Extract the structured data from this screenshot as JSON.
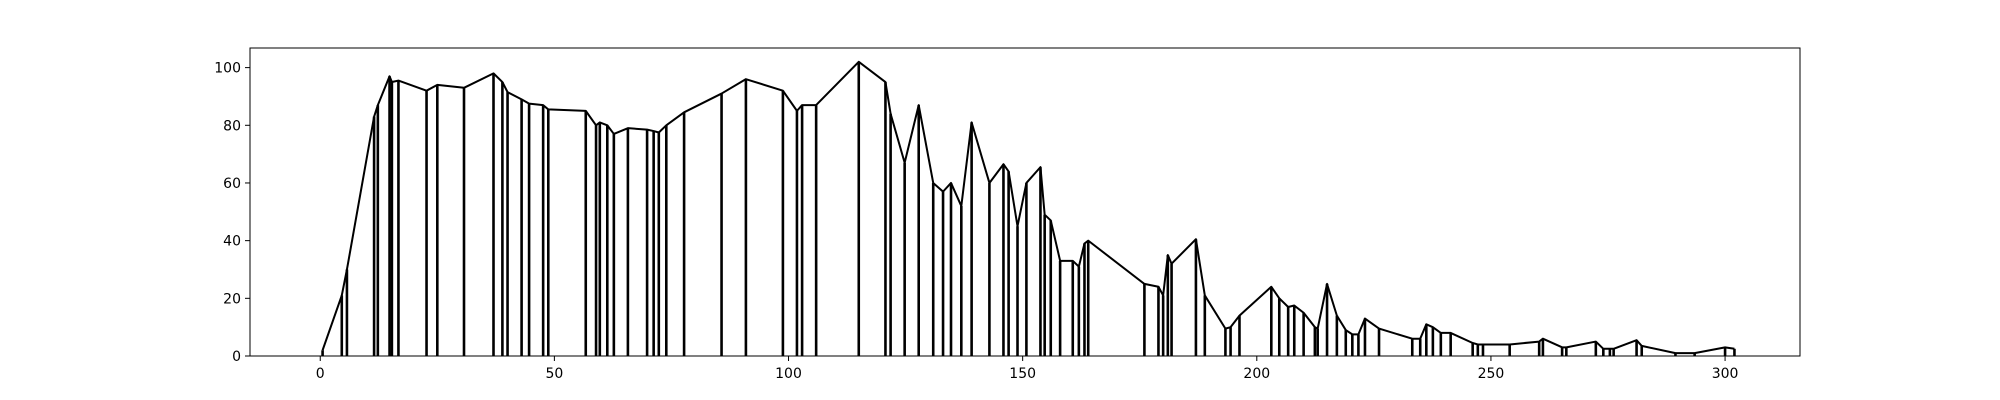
{
  "chart_data": {
    "type": "line",
    "stems": true,
    "color": "#000000",
    "x": [
      0.5,
      4.6,
      5.7,
      11.5,
      12.3,
      14.8,
      15.3,
      16.7,
      22.7,
      25,
      30.7,
      37,
      38.9,
      40,
      43,
      44.6,
      47.6,
      48.7,
      56.7,
      58.9,
      59.7,
      61.3,
      62.7,
      65.7,
      69.8,
      71.2,
      72.3,
      73.9,
      77.7,
      85.7,
      90.9,
      98.8,
      101.8,
      102.9,
      105.9,
      115,
      120.7,
      121.8,
      124.8,
      127.8,
      130.9,
      133,
      134.7,
      136.9,
      139.1,
      142.9,
      145.9,
      147,
      148.9,
      150.8,
      153.8,
      154.7,
      156,
      158,
      160.7,
      162,
      163.2,
      164,
      176,
      179,
      180,
      181,
      181.8,
      187,
      188.9,
      193.3,
      194.4,
      196.3,
      203.1,
      204.8,
      206.7,
      208,
      210,
      212.4,
      213,
      215,
      217.1,
      219,
      220.4,
      221.7,
      223.1,
      226.1,
      233.2,
      234.9,
      236.2,
      237.6,
      239.3,
      241.4,
      246.1,
      247.2,
      248.3,
      254,
      260.3,
      261.1,
      265.2,
      266.1,
      272.4,
      274,
      275.4,
      276.2,
      281.1,
      282.2,
      289.4,
      293.5,
      300,
      302
    ],
    "values": [
      2,
      21,
      30,
      83,
      87,
      97,
      95,
      95.5,
      92,
      94,
      93,
      98,
      95,
      91.5,
      89,
      87.5,
      87,
      85.5,
      85,
      80,
      81,
      80,
      77,
      79,
      78.5,
      78,
      77.5,
      80,
      84.5,
      91,
      96,
      92,
      85,
      87,
      87,
      102,
      95,
      84,
      67,
      87,
      60,
      57,
      60,
      52,
      81,
      60,
      66.5,
      64,
      45,
      60,
      65.5,
      49,
      47,
      33,
      33,
      31,
      39,
      40,
      25,
      24,
      21,
      35,
      32,
      40.5,
      21,
      9.5,
      10,
      14,
      24,
      20,
      17,
      17.5,
      15,
      10,
      9.5,
      25,
      14,
      9,
      7.5,
      7.5,
      13,
      9.5,
      6,
      6,
      11,
      10,
      8,
      8,
      4.5,
      4,
      4,
      4,
      5,
      6,
      3,
      3,
      5,
      2.5,
      2.5,
      2.5,
      5.5,
      3.5,
      1,
      1,
      3,
      2.5
    ],
    "xlim": [
      -15,
      316
    ],
    "xticks": [
      0,
      50,
      100,
      150,
      200,
      250,
      300
    ],
    "ylim": [
      0,
      106.8
    ],
    "yticks": [
      0,
      20,
      40,
      60,
      80,
      100
    ]
  }
}
